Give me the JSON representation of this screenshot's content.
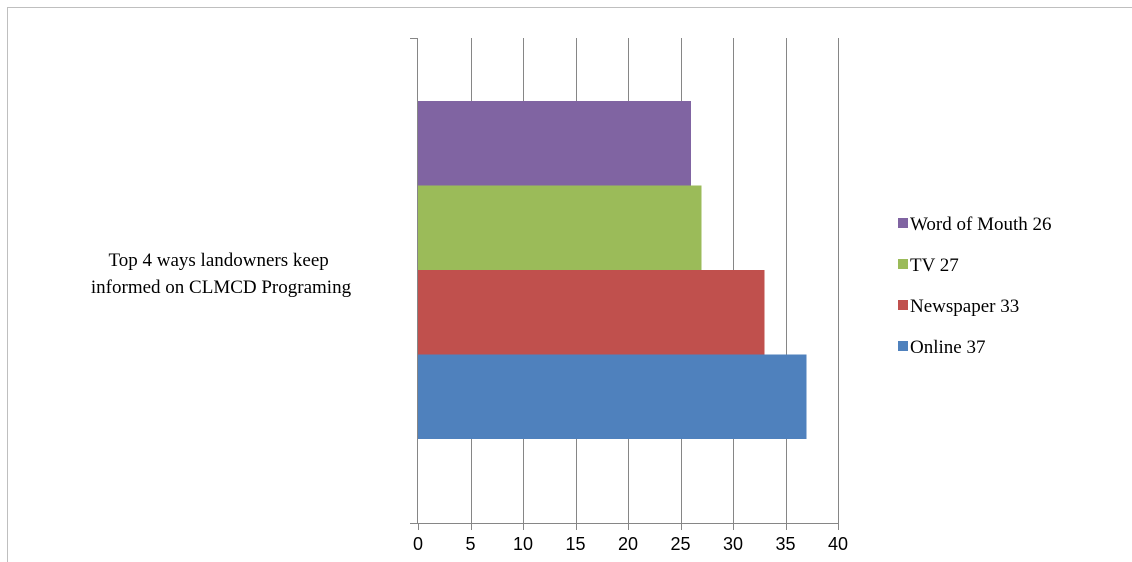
{
  "chart_data": {
    "type": "bar",
    "orientation": "horizontal",
    "stacking": "grouped",
    "category_label": "Top 4 ways landowners keep informed on CLMCD Programing",
    "category_label_lines": [
      "Top 4 ways landowners keep",
      "informed on CLMCD Programing"
    ],
    "xlim": [
      0,
      40
    ],
    "x_ticks": [
      0,
      5,
      10,
      15,
      20,
      25,
      30,
      35,
      40
    ],
    "grid": "vertical",
    "legend_position": "right",
    "series": [
      {
        "name": "Online 37",
        "value": 37,
        "color": "#4f81bd"
      },
      {
        "name": "Newspaper 33",
        "value": 33,
        "color": "#c0504d"
      },
      {
        "name": "TV 27",
        "value": 27,
        "color": "#9bbb59"
      },
      {
        "name": "Word of Mouth 26",
        "value": 26,
        "color": "#8064a2"
      }
    ],
    "legend_order": [
      "Word of Mouth 26",
      "TV 27",
      "Newspaper 33",
      "Online 37"
    ]
  }
}
